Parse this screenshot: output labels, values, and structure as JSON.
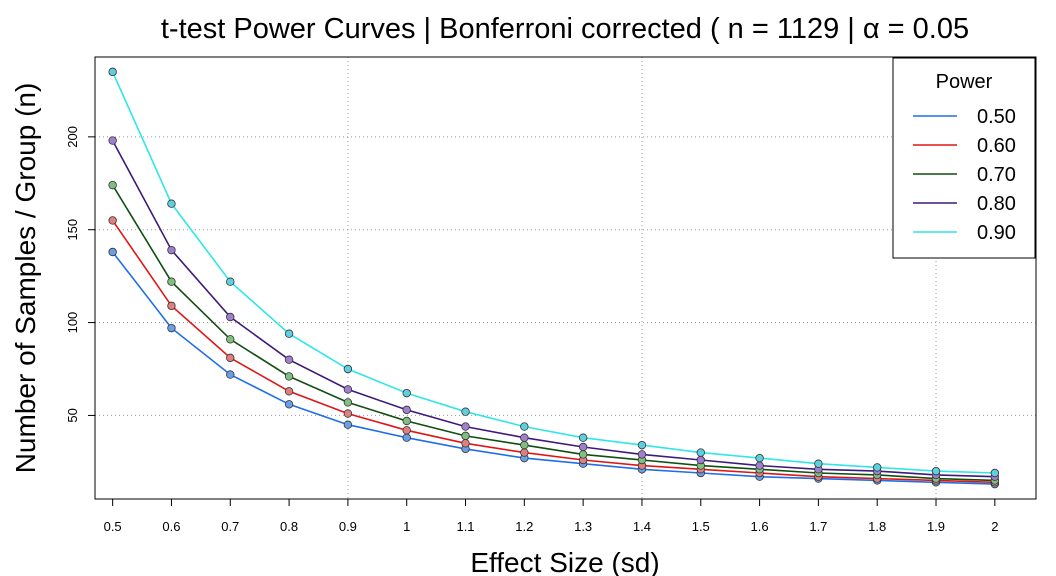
{
  "chart_data": {
    "type": "line",
    "title": {
      "prefix": "t-test Power Curves | Bonferroni corrected ( n = 1129 | ",
      "alpha_symbol": "α",
      "suffix": " = 0.05"
    },
    "xlabel": "Effect Size (sd)",
    "ylabel": "Number of Samples / Group (n)",
    "x": [
      0.5,
      0.6,
      0.7,
      0.8,
      0.9,
      1.0,
      1.1,
      1.2,
      1.3,
      1.4,
      1.5,
      1.6,
      1.7,
      1.8,
      1.9,
      2.0
    ],
    "x_tick_labels": [
      "0.5",
      "0.6",
      "0.7",
      "0.8",
      "0.9",
      "1",
      "1.1",
      "1.2",
      "1.3",
      "1.4",
      "1.5",
      "1.6",
      "1.7",
      "1.8",
      "1.9",
      "2"
    ],
    "y_ticks": [
      50,
      100,
      150,
      200
    ],
    "y_tick_labels": [
      "50",
      "100",
      "150",
      "200"
    ],
    "xlim": [
      0.47,
      2.07
    ],
    "ylim": [
      5,
      243
    ],
    "grid": true,
    "legend": {
      "title": "Power",
      "position": "top-right"
    },
    "series": [
      {
        "name": "0.50",
        "color": "#1e6fe8",
        "point_fill": "#6a9fe6",
        "values": [
          138,
          97,
          72,
          56,
          45,
          38,
          32,
          27,
          24,
          21,
          19,
          17,
          16,
          15,
          14,
          13
        ]
      },
      {
        "name": "0.60",
        "color": "#e01616",
        "point_fill": "#e07f7f",
        "values": [
          155,
          109,
          81,
          63,
          51,
          42,
          35,
          30,
          26,
          23,
          21,
          19,
          17,
          16,
          15,
          14
        ]
      },
      {
        "name": "0.70",
        "color": "#0f4f0f",
        "point_fill": "#7fbf7f",
        "values": [
          174,
          122,
          91,
          71,
          57,
          47,
          39,
          34,
          29,
          26,
          23,
          21,
          19,
          18,
          16,
          15
        ]
      },
      {
        "name": "0.80",
        "color": "#3c1a7a",
        "point_fill": "#a07fcf",
        "values": [
          198,
          139,
          103,
          80,
          64,
          53,
          44,
          38,
          33,
          29,
          26,
          23,
          21,
          20,
          18,
          17
        ]
      },
      {
        "name": "0.90",
        "color": "#30e6e6",
        "point_fill": "#5fcfe0",
        "values": [
          235,
          164,
          122,
          94,
          75,
          62,
          52,
          44,
          38,
          34,
          30,
          27,
          24,
          22,
          20,
          19
        ]
      }
    ]
  }
}
